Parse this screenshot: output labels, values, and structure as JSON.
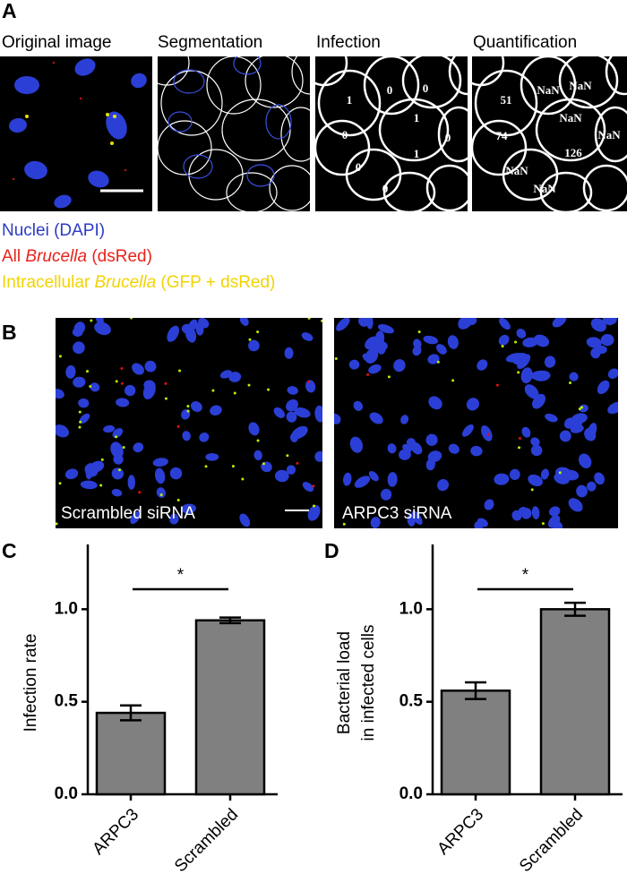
{
  "panels": {
    "A": {
      "label": "A",
      "images": [
        "Original image",
        "Segmentation",
        "Infection",
        "Quantification"
      ],
      "infection_labels": [
        "1",
        "0",
        "0",
        "0",
        "1",
        "0",
        "1",
        "0",
        "0"
      ],
      "quantification_labels": [
        "51",
        "NaN",
        "NaN",
        "74",
        "NaN",
        "NaN",
        "126",
        "NaN",
        "NaN"
      ],
      "legend": [
        {
          "parts": [
            "Nuclei (DAPI)"
          ],
          "color": "#2b3bc4"
        },
        {
          "parts": [
            "All ",
            "Brucella",
            " (dsRed)"
          ],
          "color": "#e8231c"
        },
        {
          "parts": [
            "Intracellular ",
            "Brucella",
            " (GFP + dsRed)"
          ],
          "color": "#f2d300"
        }
      ]
    },
    "B": {
      "label": "B",
      "images": [
        "Scrambled siRNA",
        "ARPC3 siRNA"
      ]
    }
  },
  "chart_data": [
    {
      "type": "bar",
      "panel_label": "C",
      "y_label": [
        "Infection rate"
      ],
      "categories": [
        "ARPC3",
        "Scrambled"
      ],
      "values": [
        0.44,
        0.94
      ],
      "errors": [
        0.04,
        0.015
      ],
      "color": "#808080",
      "ylim": [
        0,
        1.35
      ],
      "yticks": [
        {
          "value": 0,
          "label": "0.0"
        },
        0.5,
        {
          "value": 1,
          "label": "1.0"
        }
      ],
      "annotation": "*"
    },
    {
      "type": "bar",
      "panel_label": "D",
      "y_label": [
        "Bacterial load",
        "in infected cells"
      ],
      "categories": [
        "ARPC3",
        "Scrambled"
      ],
      "values": [
        0.56,
        1.0
      ],
      "errors": [
        0.045,
        0.035
      ],
      "color": "#808080",
      "ylim": [
        0,
        1.35
      ],
      "yticks": [
        {
          "value": 0,
          "label": "0.0"
        },
        0.5,
        {
          "value": 1,
          "label": "1.0"
        }
      ],
      "annotation": "*"
    }
  ]
}
